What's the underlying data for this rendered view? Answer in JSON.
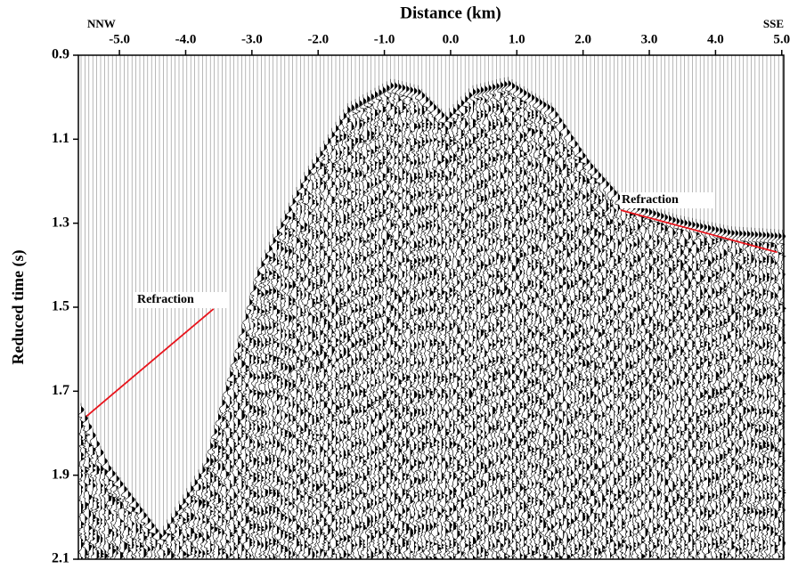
{
  "chart_data": {
    "type": "seismic",
    "title": "Distance (km)",
    "y_label": "Reduced time (s)",
    "annotations": [
      "NNW",
      "SSE",
      "Refraction",
      "Refraction"
    ],
    "xlim": [
      -5.62,
      5.03
    ],
    "ylim": [
      2.1,
      0.9
    ],
    "xticks": [
      {
        "value": -5,
        "label": "-5.0"
      },
      {
        "value": -4,
        "label": "-4.0"
      },
      {
        "value": -3,
        "label": "-3.0"
      },
      {
        "value": -2,
        "label": "-2.0"
      },
      {
        "value": -1,
        "label": "-1.0"
      },
      {
        "value": 0,
        "label": "0.0"
      },
      {
        "value": 1,
        "label": "1.0"
      },
      {
        "value": 2,
        "label": "2.0"
      },
      {
        "value": 3,
        "label": "3.0"
      },
      {
        "value": 4,
        "label": "4.0"
      },
      {
        "value": 5,
        "label": "5.0"
      }
    ],
    "yticks": [
      0.9,
      1.1,
      1.3,
      1.5,
      1.7,
      1.9,
      2.1
    ],
    "series": [
      {
        "color": "#e8141c",
        "x": [
          -5.5,
          -3.58
        ],
        "values": [
          1.76,
          1.504
        ]
      },
      {
        "color": "#e8141c",
        "x": [
          2.57,
          4.93
        ],
        "values": [
          1.269,
          1.369
        ]
      }
    ]
  }
}
